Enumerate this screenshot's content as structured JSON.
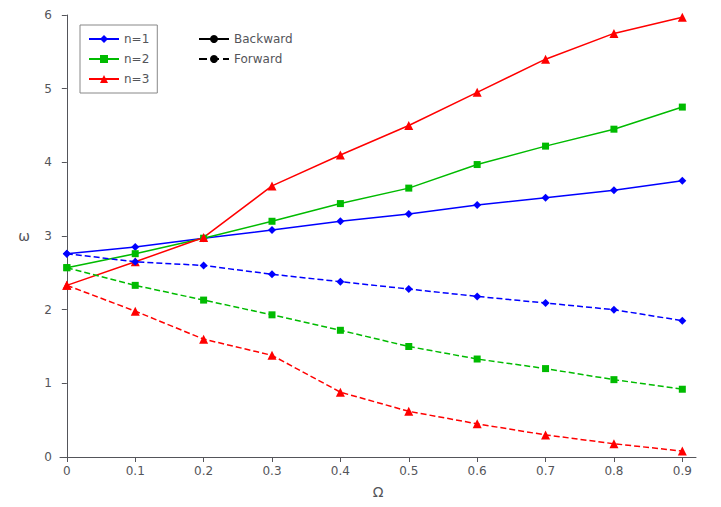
{
  "chart_data": {
    "type": "line",
    "xlabel": "Ω",
    "ylabel": "ω",
    "x": [
      0,
      0.1,
      0.2,
      0.3,
      0.4,
      0.5,
      0.6,
      0.7,
      0.8,
      0.9
    ],
    "series": [
      {
        "name": "n=1",
        "color": "#0000FF",
        "marker": "diamond",
        "line_style": "solid",
        "values": [
          2.76,
          2.85,
          2.97,
          3.08,
          3.2,
          3.3,
          3.42,
          3.52,
          3.62,
          3.75
        ]
      },
      {
        "name": "n=2",
        "color": "#00BB00",
        "marker": "square",
        "line_style": "solid",
        "values": [
          2.57,
          2.76,
          2.97,
          3.2,
          3.44,
          3.65,
          3.97,
          4.22,
          4.45,
          4.75
        ]
      },
      {
        "name": "n=3",
        "color": "#FF0000",
        "marker": "triangle",
        "line_style": "solid",
        "values": [
          2.33,
          2.65,
          2.98,
          3.68,
          4.1,
          4.5,
          4.95,
          5.4,
          5.75,
          5.97
        ]
      },
      {
        "name": "n=1",
        "color": "#0000FF",
        "marker": "diamond",
        "line_style": "dashed",
        "values": [
          2.76,
          2.65,
          2.6,
          2.48,
          2.38,
          2.28,
          2.18,
          2.09,
          2.0,
          1.85
        ]
      },
      {
        "name": "n=2",
        "color": "#00BB00",
        "marker": "square",
        "line_style": "dashed",
        "values": [
          2.57,
          2.33,
          2.13,
          1.93,
          1.72,
          1.5,
          1.33,
          1.2,
          1.05,
          0.92
        ]
      },
      {
        "name": "n=3",
        "color": "#FF0000",
        "marker": "triangle",
        "line_style": "dashed",
        "values": [
          2.33,
          1.98,
          1.6,
          1.38,
          0.88,
          0.62,
          0.45,
          0.3,
          0.18,
          0.08
        ]
      }
    ],
    "style_legend": [
      {
        "name": "Backward",
        "color": "#000000",
        "line_style": "solid"
      },
      {
        "name": "Forward",
        "color": "#000000",
        "line_style": "dashed"
      }
    ],
    "xlim": [
      -0.01,
      0.92
    ],
    "ylim": [
      0,
      6
    ],
    "xticks": [
      0,
      0.1,
      0.2,
      0.3,
      0.4,
      0.5,
      0.6,
      0.7,
      0.8,
      0.9
    ],
    "yticks": [
      0,
      1,
      2,
      3,
      4,
      5,
      6
    ],
    "grid": false,
    "legend": "upper left"
  }
}
